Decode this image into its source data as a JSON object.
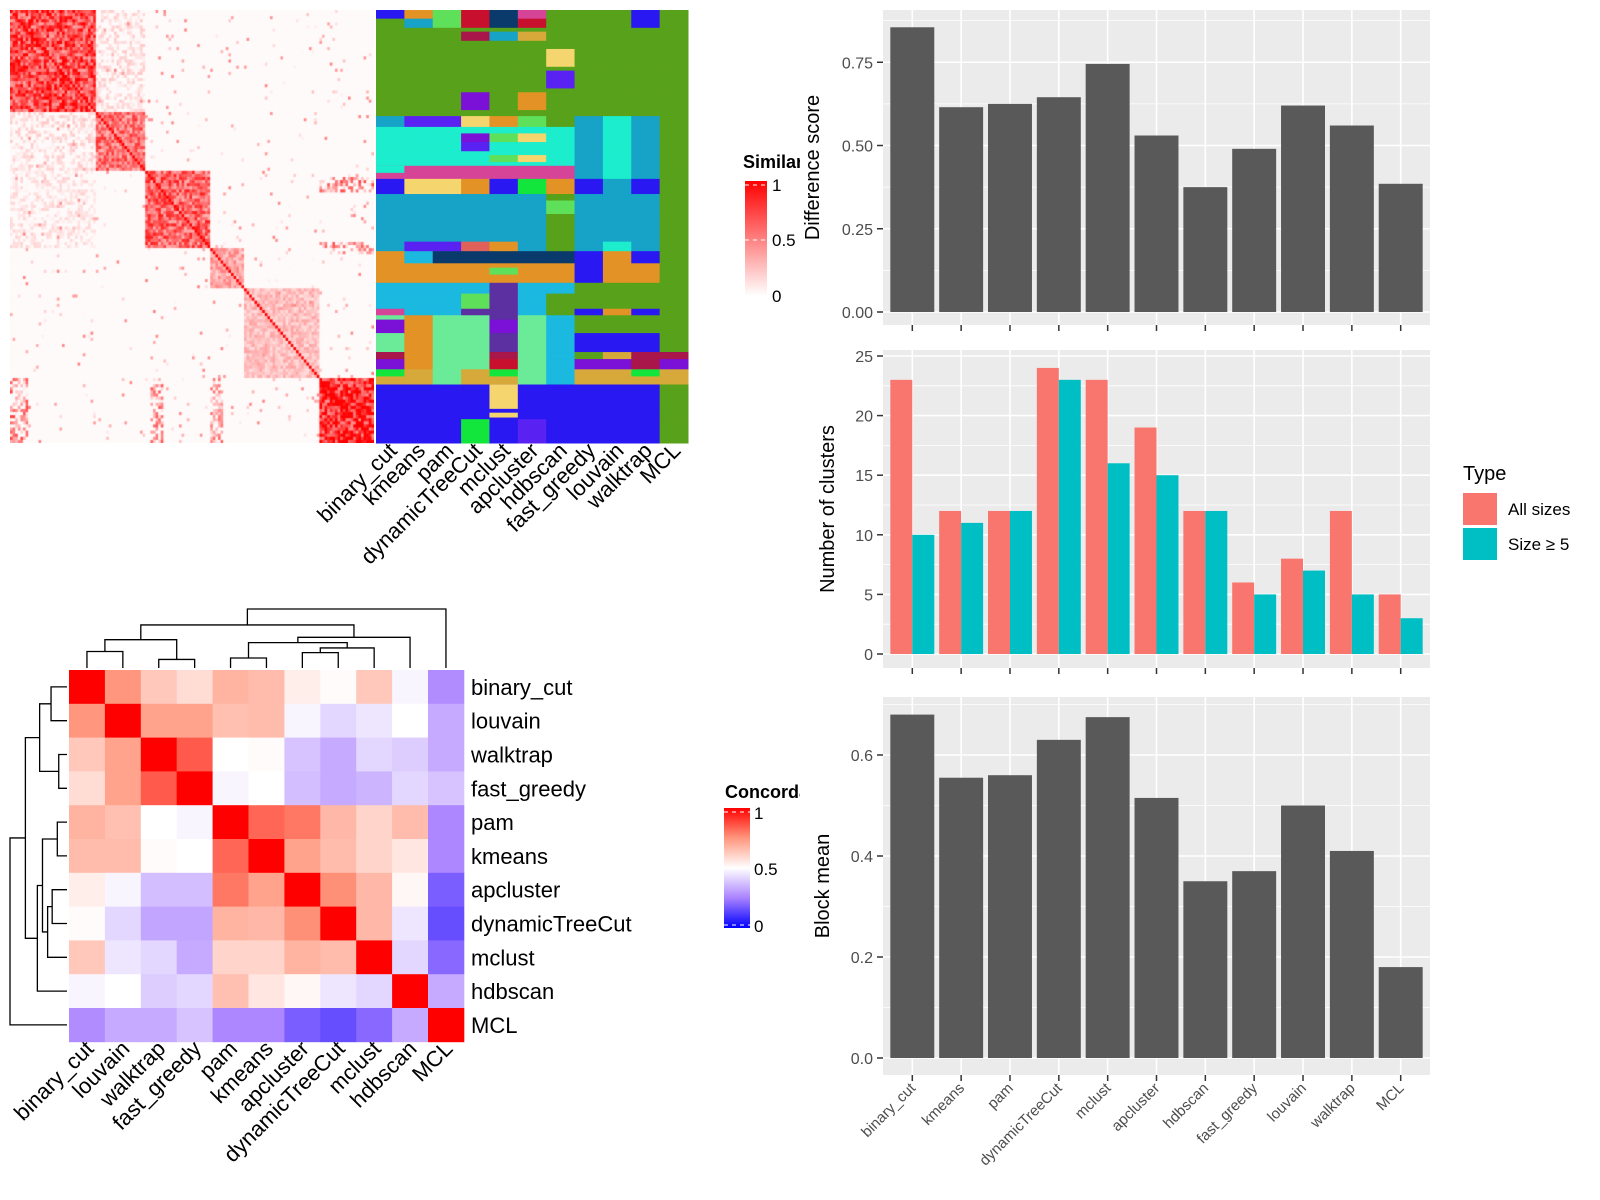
{
  "chart_data": [
    {
      "type": "heatmap",
      "panel": "similarity-heatmap",
      "legend": {
        "title": "Similarity",
        "ticks": [
          "1",
          "0.5",
          "0"
        ],
        "colors": [
          "#ffffff",
          "#ff0000"
        ]
      }
    },
    {
      "type": "heatmap",
      "panel": "cluster-label-heatmap",
      "columns": [
        "binary_cut",
        "kmeans",
        "pam",
        "dynamicTreeCut",
        "mclust",
        "apcluster",
        "hdbscan",
        "fast_greedy",
        "louvain",
        "walktrap",
        "MCL"
      ]
    },
    {
      "type": "heatmap",
      "panel": "concordance-heatmap",
      "rows": [
        "binary_cut",
        "louvain",
        "walktrap",
        "fast_greedy",
        "pam",
        "kmeans",
        "apcluster",
        "dynamicTreeCut",
        "mclust",
        "hdbscan",
        "MCL"
      ],
      "columns": [
        "binary_cut",
        "louvain",
        "walktrap",
        "fast_greedy",
        "pam",
        "kmeans",
        "apcluster",
        "dynamicTreeCut",
        "mclust",
        "hdbscan",
        "MCL"
      ],
      "values": [
        [
          1.0,
          0.75,
          0.63,
          0.58,
          0.68,
          0.66,
          0.54,
          0.51,
          0.63,
          0.48,
          0.27
        ],
        [
          0.75,
          1.0,
          0.72,
          0.72,
          0.65,
          0.66,
          0.48,
          0.42,
          0.45,
          0.5,
          0.33
        ],
        [
          0.63,
          0.72,
          1.0,
          0.85,
          0.5,
          0.51,
          0.38,
          0.33,
          0.42,
          0.4,
          0.33
        ],
        [
          0.58,
          0.72,
          0.85,
          1.0,
          0.48,
          0.5,
          0.37,
          0.33,
          0.35,
          0.42,
          0.38
        ],
        [
          0.68,
          0.65,
          0.5,
          0.48,
          1.0,
          0.83,
          0.8,
          0.67,
          0.6,
          0.66,
          0.26
        ],
        [
          0.66,
          0.66,
          0.51,
          0.5,
          0.83,
          1.0,
          0.72,
          0.66,
          0.6,
          0.56,
          0.26
        ],
        [
          0.54,
          0.48,
          0.37,
          0.37,
          0.8,
          0.72,
          1.0,
          0.76,
          0.67,
          0.52,
          0.18
        ],
        [
          0.51,
          0.42,
          0.32,
          0.32,
          0.68,
          0.67,
          0.76,
          1.0,
          0.67,
          0.45,
          0.15
        ],
        [
          0.63,
          0.45,
          0.42,
          0.33,
          0.6,
          0.6,
          0.68,
          0.66,
          1.0,
          0.42,
          0.2
        ],
        [
          0.48,
          0.5,
          0.4,
          0.42,
          0.65,
          0.56,
          0.52,
          0.45,
          0.42,
          1.0,
          0.33
        ],
        [
          0.27,
          0.33,
          0.33,
          0.38,
          0.26,
          0.26,
          0.18,
          0.15,
          0.2,
          0.33,
          1.0
        ]
      ],
      "legend": {
        "title": "Concordance",
        "ticks": [
          "1",
          "0.5",
          "0"
        ],
        "colors": [
          "#0000ff",
          "#ffffff",
          "#ff0000"
        ]
      }
    },
    {
      "type": "bar",
      "panel": "difference-score",
      "categories": [
        "binary_cut",
        "kmeans",
        "pam",
        "dynamicTreeCut",
        "mclust",
        "apcluster",
        "hdbscan",
        "fast_greedy",
        "louvain",
        "walktrap",
        "MCL"
      ],
      "values": [
        0.855,
        0.615,
        0.625,
        0.645,
        0.745,
        0.53,
        0.375,
        0.49,
        0.62,
        0.56,
        0.385
      ],
      "ylabel": "Difference score",
      "yticks": [
        "0.00",
        "0.25",
        "0.50",
        "0.75"
      ],
      "ylim": [
        0,
        0.9
      ],
      "bar_color": "#595959"
    },
    {
      "type": "bar",
      "panel": "number-of-clusters",
      "categories": [
        "binary_cut",
        "kmeans",
        "pam",
        "dynamicTreeCut",
        "mclust",
        "apcluster",
        "hdbscan",
        "fast_greedy",
        "louvain",
        "walktrap",
        "MCL"
      ],
      "series": [
        {
          "name": "All sizes",
          "values": [
            23,
            12,
            12,
            24,
            23,
            19,
            12,
            6,
            8,
            12,
            5
          ],
          "color": "#f8766d"
        },
        {
          "name": "Size ≥ 5",
          "values": [
            10,
            11,
            12,
            23,
            16,
            15,
            12,
            5,
            7,
            5,
            3
          ],
          "color": "#00bfc4"
        }
      ],
      "ylabel": "Number of clusters",
      "yticks": [
        "0",
        "5",
        "10",
        "15",
        "20",
        "25"
      ],
      "ylim": [
        0,
        25
      ],
      "legend": {
        "title": "Type",
        "position": "right"
      }
    },
    {
      "type": "bar",
      "panel": "block-mean",
      "categories": [
        "binary_cut",
        "kmeans",
        "pam",
        "dynamicTreeCut",
        "mclust",
        "apcluster",
        "hdbscan",
        "fast_greedy",
        "louvain",
        "walktrap",
        "MCL"
      ],
      "values": [
        0.68,
        0.555,
        0.56,
        0.63,
        0.675,
        0.515,
        0.35,
        0.37,
        0.5,
        0.41,
        0.18
      ],
      "ylabel": "Block mean",
      "yticks": [
        "0.0",
        "0.2",
        "0.4",
        "0.6"
      ],
      "ylim": [
        0,
        0.7
      ],
      "bar_color": "#595959"
    }
  ]
}
